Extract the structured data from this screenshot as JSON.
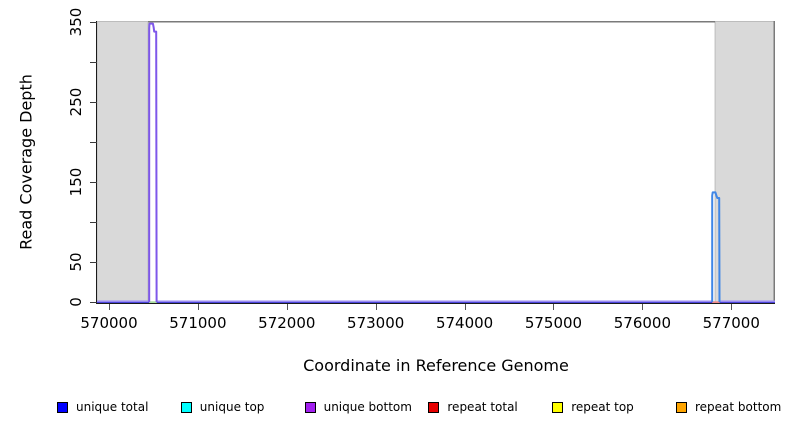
{
  "figure": {
    "kind": "read-coverage-plot"
  },
  "colors": {
    "shade_fill": "#d9d9d9",
    "shade_border": "#bcbcbc",
    "box": "#7a7a7a",
    "axis": "#1a1a1a",
    "tick": "#4a4a4a"
  },
  "chart_data": {
    "type": "line",
    "title": "",
    "xlabel": "Coordinate in Reference Genome",
    "ylabel": "Read Coverage Depth",
    "xlim": [
      569865,
      577492
    ],
    "ylim": [
      0,
      350
    ],
    "x_ticks": [
      570000,
      571000,
      572000,
      573000,
      574000,
      575000,
      576000,
      577000
    ],
    "y_ticks": [
      0,
      50,
      100,
      150,
      200,
      250,
      300,
      350
    ],
    "y_tick_labels": [
      "0",
      "50",
      "",
      "150",
      "",
      "250",
      "",
      "350"
    ],
    "grid": false,
    "legend_position": "bottom",
    "shaded_regions": [
      {
        "name": "masked-region-left",
        "x0": 569865,
        "x1": 570439
      },
      {
        "name": "masked-region-right",
        "x0": 576818,
        "x1": 577492
      }
    ],
    "baseline_segments": [
      {
        "name": "repeat-total-baseline",
        "color": "#e05555",
        "x0": 569865,
        "x1": 577492,
        "dy": 0.6,
        "w": 1.6
      },
      {
        "name": "repeat-top-baseline-under-left-peak",
        "color": "#a8dd9e",
        "x0": 570448,
        "x1": 570540,
        "dy": 0.4,
        "w": 2.2
      },
      {
        "name": "repeat-baseline-under-right-peak",
        "color": "#ef8a8a",
        "x0": 576782,
        "x1": 576872,
        "dy": 0.4,
        "w": 2.2
      },
      {
        "name": "unique-total-baseline-1",
        "color": "#4a44d8",
        "x0": 569865,
        "x1": 570452,
        "dy": 0.8,
        "w": 1.6
      },
      {
        "name": "unique-total-baseline-2",
        "color": "#4a44d8",
        "x0": 570536,
        "x1": 576786,
        "dy": 0.8,
        "w": 1.6
      },
      {
        "name": "unique-total-baseline-3",
        "color": "#4a44d8",
        "x0": 576869,
        "x1": 577492,
        "dy": 0.8,
        "w": 1.6
      },
      {
        "name": "unique-bottom-baseline-1",
        "color": "#9b8cf2",
        "x0": 569865,
        "x1": 570452,
        "dy": -0.7,
        "w": 1.5
      },
      {
        "name": "unique-bottom-baseline-2",
        "color": "#9b8cf2",
        "x0": 570536,
        "x1": 576786,
        "dy": -0.7,
        "w": 1.5
      },
      {
        "name": "unique-bottom-baseline-3",
        "color": "#9b8cf2",
        "x0": 576869,
        "x1": 577492,
        "dy": -0.7,
        "w": 1.5
      }
    ],
    "series": [
      {
        "name": "unique bottom peak",
        "color": "#7e57ea",
        "width": 2,
        "peak_value": 348,
        "points": [
          [
            570452,
            0
          ],
          [
            570452,
            342
          ],
          [
            570456,
            348
          ],
          [
            570494,
            348
          ],
          [
            570503,
            343
          ],
          [
            570509,
            338
          ],
          [
            570531,
            338
          ],
          [
            570535,
            0
          ]
        ]
      },
      {
        "name": "unique top peak",
        "color": "#3f86e6",
        "width": 2,
        "peak_value": 137,
        "points": [
          [
            576786,
            0
          ],
          [
            576786,
            133
          ],
          [
            576791,
            137
          ],
          [
            576822,
            137
          ],
          [
            576833,
            133
          ],
          [
            576843,
            130
          ],
          [
            576864,
            130
          ],
          [
            576868,
            0
          ]
        ]
      }
    ]
  },
  "legend": {
    "items": [
      {
        "label": "unique total",
        "color": "#0000ff"
      },
      {
        "label": "unique top",
        "color": "#00ffff"
      },
      {
        "label": "unique bottom",
        "color": "#a21ff0"
      },
      {
        "label": "repeat total",
        "color": "#e60000"
      },
      {
        "label": "repeat top",
        "color": "#ffff00"
      },
      {
        "label": "repeat bottom",
        "color": "#ffa500"
      }
    ]
  }
}
